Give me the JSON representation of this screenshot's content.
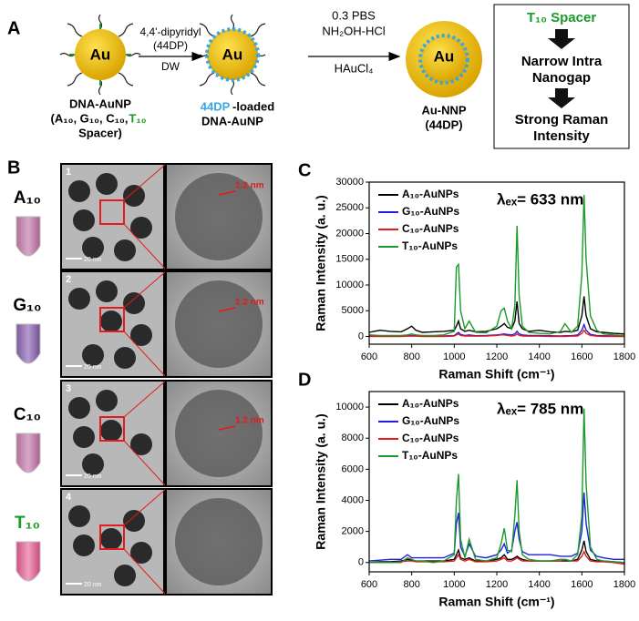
{
  "panel_a": {
    "label": "A",
    "particles": [
      "Au",
      "Au",
      "Au"
    ],
    "step1": [
      "4,4'-dipyridyl",
      "(44DP)",
      "DW"
    ],
    "step2": [
      "0.3 PBS",
      "NH₂OH-HCl",
      "HAuCl₄"
    ],
    "caption1": [
      "DNA-AuNP",
      "(A₁₀, G₁₀, C₁₀,",
      "T₁₀",
      "Spacer)"
    ],
    "caption2": [
      "44DP",
      "-loaded",
      "DNA-AuNP"
    ],
    "caption3": [
      "Au-NNP",
      "(44DP)"
    ],
    "box": [
      "T₁₀ Spacer",
      "Narrow Intra",
      "Nanogap",
      "Strong Raman",
      "Intensity"
    ]
  },
  "panel_b": {
    "label": "B",
    "tubes": [
      "A₁₀",
      "G₁₀",
      "C₁₀",
      "T₁₀"
    ],
    "numbers": [
      "1",
      "2",
      "3",
      "4"
    ],
    "scale": "20 nm",
    "gap": "1.2 nm"
  },
  "chart_data": [
    {
      "type": "line",
      "label": "C",
      "annotation": "λₑₓ= 633 nm",
      "x_label": "Raman Shift (cm⁻¹)",
      "y_label": "Raman Intensity (a. u.)",
      "xlim": [
        600,
        1800
      ],
      "xticks": [
        600,
        800,
        1000,
        1200,
        1400,
        1600,
        1800
      ],
      "ylim": [
        -1500,
        30000
      ],
      "yticks": [
        0,
        5000,
        10000,
        15000,
        20000,
        25000,
        30000
      ],
      "legend": "upper-left",
      "x": [
        600,
        650,
        700,
        750,
        780,
        800,
        820,
        850,
        900,
        950,
        1000,
        1010,
        1020,
        1030,
        1050,
        1070,
        1100,
        1150,
        1200,
        1220,
        1235,
        1250,
        1270,
        1285,
        1295,
        1305,
        1320,
        1350,
        1400,
        1450,
        1500,
        1520,
        1550,
        1580,
        1600,
        1610,
        1620,
        1640,
        1670,
        1700,
        1750,
        1800
      ],
      "series": [
        {
          "name": "A₁₀-AuNPs",
          "color": "#000000",
          "values": [
            800,
            1200,
            1000,
            900,
            1500,
            2000,
            1200,
            800,
            900,
            1000,
            1200,
            2000,
            3000,
            1500,
            1000,
            1200,
            900,
            1000,
            1500,
            2000,
            2500,
            1800,
            1500,
            3000,
            6800,
            2500,
            1500,
            1000,
            1200,
            900,
            800,
            1000,
            900,
            1200,
            4000,
            7800,
            4000,
            1500,
            900,
            800,
            600,
            500
          ]
        },
        {
          "name": "G₁₀-AuNPs",
          "color": "#1f1fe0",
          "values": [
            100,
            150,
            100,
            100,
            200,
            200,
            150,
            100,
            100,
            100,
            200,
            500,
            800,
            400,
            200,
            300,
            150,
            200,
            300,
            400,
            500,
            400,
            300,
            500,
            1000,
            500,
            300,
            200,
            200,
            150,
            100,
            150,
            150,
            300,
            1200,
            2300,
            1200,
            400,
            200,
            150,
            100,
            100
          ]
        },
        {
          "name": "C₁₀-AuNPs",
          "color": "#e41a1c",
          "values": [
            0,
            0,
            0,
            0,
            50,
            100,
            50,
            0,
            0,
            0,
            100,
            300,
            500,
            200,
            100,
            100,
            50,
            100,
            200,
            300,
            300,
            200,
            100,
            200,
            500,
            200,
            100,
            50,
            50,
            0,
            0,
            0,
            50,
            100,
            600,
            1200,
            600,
            200,
            50,
            0,
            0,
            0
          ]
        },
        {
          "name": "T₁₀-AuNPs",
          "color": "#1a9a2a",
          "values": [
            300,
            200,
            200,
            200,
            300,
            500,
            300,
            200,
            200,
            300,
            1000,
            13500,
            14000,
            5000,
            1500,
            3000,
            800,
            700,
            2000,
            5000,
            5500,
            3000,
            1500,
            6000,
            21500,
            8000,
            2000,
            800,
            600,
            500,
            1000,
            2500,
            800,
            2000,
            12000,
            27500,
            15000,
            4000,
            1200,
            500,
            300,
            200
          ]
        }
      ]
    },
    {
      "type": "line",
      "label": "D",
      "annotation": "λₑₓ= 785 nm",
      "x_label": "Raman Shift (cm⁻¹)",
      "y_label": "Raman Intensity (a. u.)",
      "xlim": [
        600,
        1800
      ],
      "xticks": [
        600,
        800,
        1000,
        1200,
        1400,
        1600,
        1800
      ],
      "ylim": [
        -600,
        11000
      ],
      "yticks": [
        0,
        2000,
        4000,
        6000,
        8000,
        10000
      ],
      "legend": "upper-left",
      "x": [
        600,
        650,
        700,
        750,
        780,
        800,
        820,
        850,
        900,
        950,
        1000,
        1010,
        1020,
        1030,
        1050,
        1070,
        1100,
        1150,
        1200,
        1220,
        1235,
        1250,
        1270,
        1285,
        1295,
        1305,
        1320,
        1350,
        1400,
        1450,
        1500,
        1520,
        1550,
        1580,
        1600,
        1610,
        1620,
        1640,
        1670,
        1700,
        1750,
        1800
      ],
      "series": [
        {
          "name": "A₁₀-AuNPs",
          "color": "#000000",
          "values": [
            0,
            50,
            50,
            100,
            200,
            150,
            100,
            100,
            100,
            100,
            200,
            500,
            800,
            300,
            200,
            300,
            100,
            100,
            200,
            300,
            500,
            200,
            200,
            300,
            400,
            300,
            200,
            100,
            100,
            100,
            100,
            100,
            100,
            200,
            800,
            1400,
            700,
            200,
            100,
            100,
            50,
            0
          ]
        },
        {
          "name": "G₁₀-AuNPs",
          "color": "#1f1fe0",
          "values": [
            100,
            150,
            200,
            200,
            500,
            300,
            300,
            300,
            300,
            300,
            600,
            2500,
            3200,
            1000,
            400,
            1200,
            400,
            300,
            500,
            800,
            1200,
            600,
            800,
            2000,
            2600,
            1500,
            700,
            500,
            500,
            500,
            400,
            400,
            400,
            600,
            2000,
            4500,
            2500,
            800,
            400,
            300,
            200,
            200
          ]
        },
        {
          "name": "C₁₀-AuNPs",
          "color": "#e41a1c",
          "values": [
            0,
            0,
            0,
            50,
            100,
            100,
            50,
            50,
            50,
            50,
            100,
            300,
            500,
            200,
            100,
            200,
            50,
            50,
            100,
            200,
            300,
            100,
            100,
            200,
            300,
            200,
            100,
            100,
            100,
            100,
            100,
            200,
            100,
            100,
            400,
            700,
            400,
            100,
            50,
            50,
            0,
            -100
          ]
        },
        {
          "name": "T₁₀-AuNPs",
          "color": "#1a9a2a",
          "values": [
            0,
            0,
            0,
            0,
            300,
            200,
            100,
            100,
            0,
            100,
            500,
            4000,
            5700,
            1500,
            300,
            1500,
            200,
            100,
            300,
            1200,
            2200,
            800,
            700,
            3000,
            5300,
            2000,
            500,
            200,
            100,
            100,
            200,
            200,
            100,
            500,
            3000,
            9900,
            5000,
            1000,
            200,
            100,
            50,
            0
          ]
        }
      ]
    }
  ]
}
